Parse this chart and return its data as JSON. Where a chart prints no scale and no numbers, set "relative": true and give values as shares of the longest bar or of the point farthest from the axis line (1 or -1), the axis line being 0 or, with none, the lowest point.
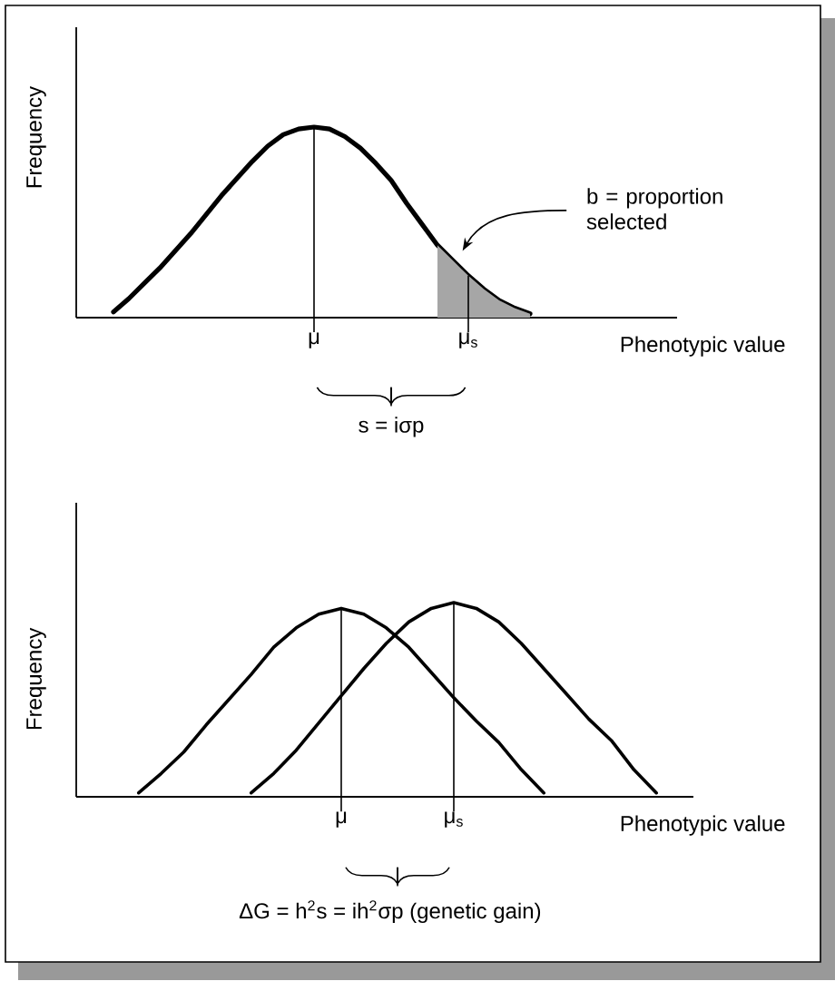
{
  "chart_data": [
    {
      "type": "line",
      "relative": true,
      "ylabel": "Frequency",
      "xlabel": "Phenotypic value",
      "categories": [
        null,
        null,
        null,
        null,
        null,
        null,
        null,
        null,
        null,
        null,
        null,
        null,
        null,
        "μ",
        null,
        null,
        null,
        null,
        null,
        null,
        null,
        null,
        null,
        "μ$_{s}$",
        null,
        null,
        null,
        null,
        null,
        null,
        null,
        null,
        null,
        null,
        null,
        null,
        null
      ],
      "series": [
        {
          "type": "line",
          "color": "#000000",
          "values": [
            0.03,
            0.1,
            0.18,
            0.26,
            0.35,
            0.44,
            0.54,
            0.64,
            0.73,
            0.82,
            0.9,
            0.96,
            0.99,
            1,
            0.99,
            0.95,
            0.89,
            0.81,
            0.72,
            0.6,
            0.49,
            0.38,
            0.3,
            0.22,
            0.15,
            0.09,
            0.05,
            0.02,
            null,
            null,
            null,
            null,
            null,
            null,
            null,
            null,
            null
          ]
        },
        {
          "type": "area",
          "color": "#a6a6a6",
          "values": [
            null,
            null,
            null,
            null,
            null,
            null,
            null,
            null,
            null,
            null,
            null,
            null,
            null,
            null,
            null,
            null,
            null,
            null,
            null,
            null,
            null,
            0.38,
            0.3,
            0.22,
            0.15,
            0.09,
            0.05,
            0.02,
            null,
            null,
            null,
            null,
            null,
            null,
            null,
            null,
            null
          ]
        }
      ],
      "ref_lines": [
        {
          "axis": "x",
          "value": "μ"
        },
        {
          "axis": "x",
          "value": "μ$_{s}$"
        }
      ],
      "annotations": [
        "b = proportion selected",
        "s = iσp"
      ]
    },
    {
      "type": "line",
      "relative": true,
      "ylabel": "Frequency",
      "xlabel": "Phenotypic value",
      "categories": [
        null,
        null,
        null,
        null,
        null,
        null,
        null,
        null,
        null,
        "μ",
        null,
        null,
        null,
        null,
        "μ$_{s}$",
        null,
        null,
        null,
        null,
        null,
        null,
        null,
        null,
        null,
        null
      ],
      "series": [
        {
          "type": "line",
          "color": "#000000",
          "values": [
            0.02,
            0.12,
            0.23,
            0.37,
            0.5,
            0.63,
            0.77,
            0.87,
            0.94,
            0.97,
            0.94,
            0.87,
            0.77,
            0.64,
            0.51,
            0.39,
            0.28,
            0.14,
            0.02,
            null,
            null,
            null,
            null,
            null,
            null
          ]
        },
        {
          "type": "line",
          "color": "#000000",
          "values": [
            null,
            null,
            null,
            null,
            null,
            0.02,
            0.12,
            0.24,
            0.38,
            0.52,
            0.66,
            0.79,
            0.9,
            0.97,
            1,
            0.97,
            0.9,
            0.79,
            0.66,
            0.53,
            0.4,
            0.29,
            0.14,
            0.02,
            null
          ]
        }
      ],
      "ref_lines": [
        {
          "axis": "x",
          "value": "μ"
        },
        {
          "axis": "x",
          "value": "μ$_{s}$"
        }
      ],
      "annotations": [
        "ΔG = h$^{2}$s = ih$^{2}$σp (genetic gain)"
      ]
    }
  ]
}
